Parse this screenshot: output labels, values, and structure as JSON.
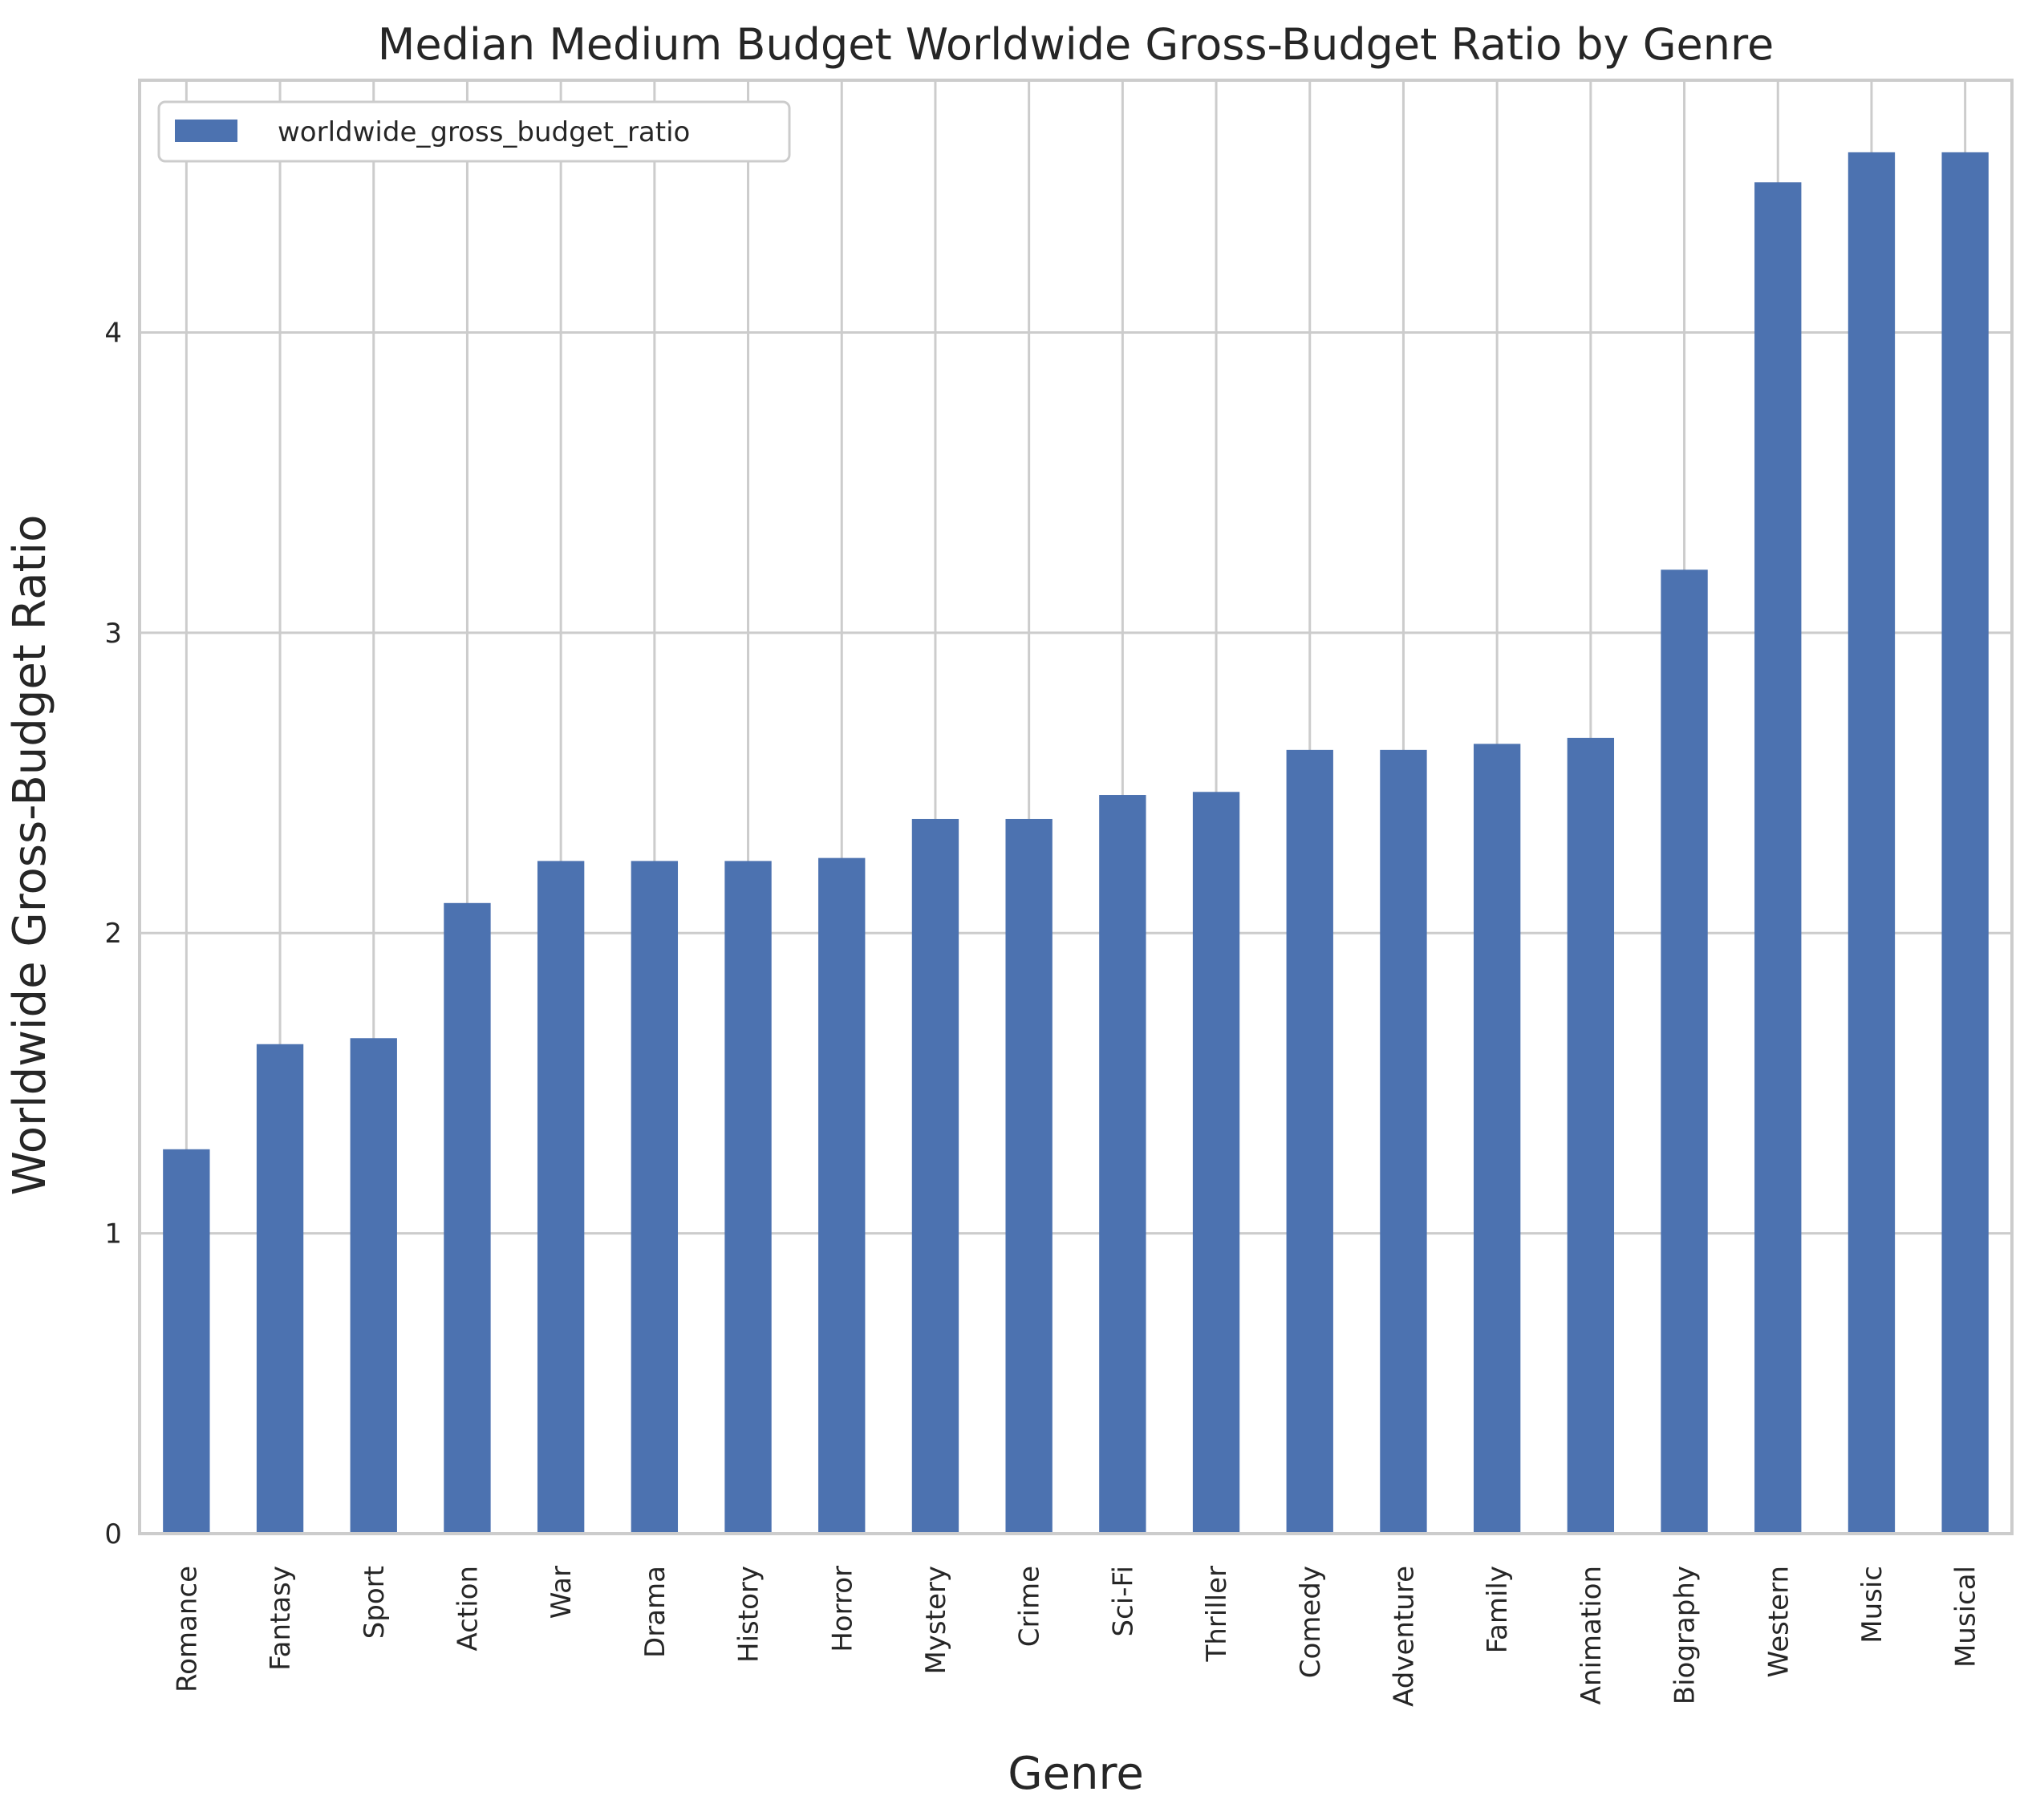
{
  "chart_data": {
    "type": "bar",
    "title": "Median Medium Budget Worldwide Gross-Budget Ratio by Genre",
    "xlabel": "Genre",
    "ylabel": "Worldwide Gross-Budget Ratio",
    "categories": [
      "Romance",
      "Fantasy",
      "Sport",
      "Action",
      "War",
      "Drama",
      "History",
      "Horror",
      "Mystery",
      "Crime",
      "Sci-Fi",
      "Thriller",
      "Comedy",
      "Adventure",
      "Family",
      "Animation",
      "Biography",
      "Western",
      "Music",
      "Musical"
    ],
    "series": [
      {
        "name": "worldwide_gross_budget_ratio",
        "color": "#4c72b0",
        "values": [
          1.28,
          1.63,
          1.65,
          2.1,
          2.24,
          2.24,
          2.24,
          2.25,
          2.38,
          2.38,
          2.46,
          2.47,
          2.61,
          2.61,
          2.63,
          2.65,
          3.21,
          4.5,
          4.6,
          4.6
        ]
      }
    ],
    "ylim": [
      0,
      4.84
    ],
    "yticks": [
      0,
      1,
      2,
      3,
      4
    ],
    "grid": true,
    "legend_position": "top-left"
  }
}
